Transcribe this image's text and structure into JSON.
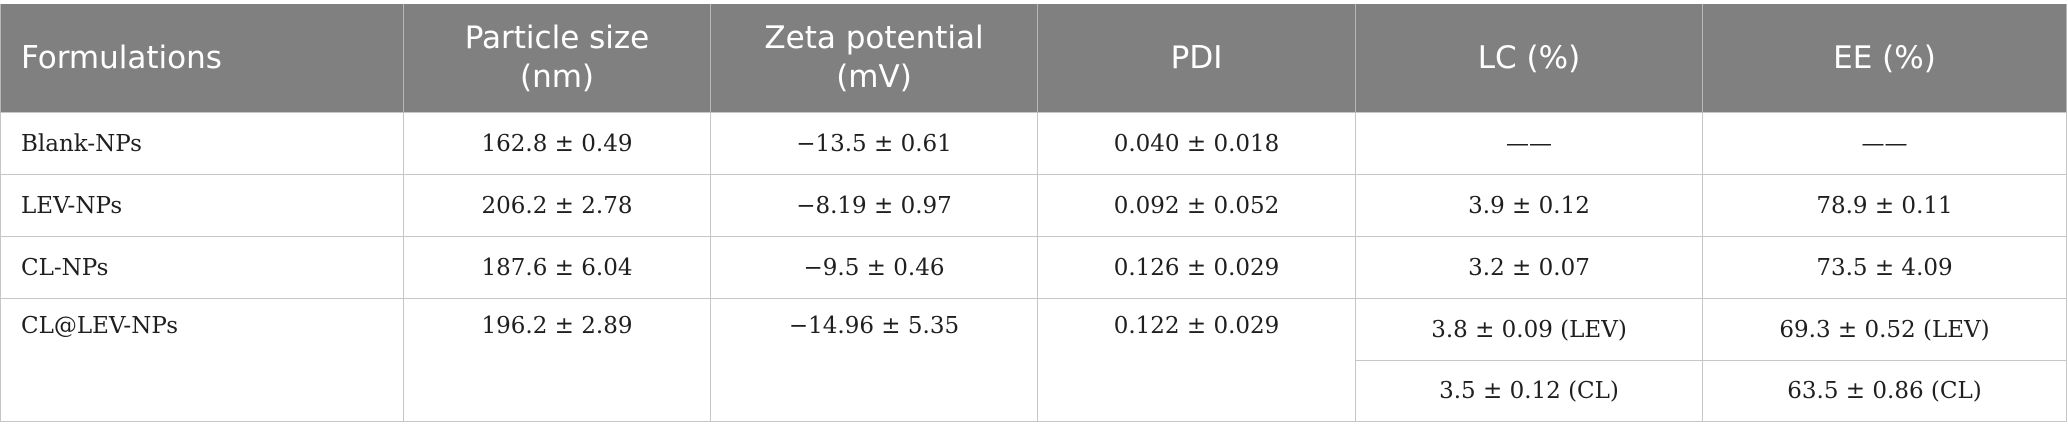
{
  "table": {
    "headers": [
      [
        "Formulations"
      ],
      [
        "Particle size",
        "(nm)"
      ],
      [
        "Zeta potential",
        "(mV)"
      ],
      [
        "PDI"
      ],
      [
        "LC (%)"
      ],
      [
        "EE (%)"
      ]
    ],
    "rows": [
      {
        "formulation": "Blank-NPs",
        "particle_size": "162.8 ± 0.49",
        "zeta_potential": "−13.5 ± 0.61",
        "pdi": "0.040 ± 0.018",
        "lc": "——",
        "ee": "——"
      },
      {
        "formulation": "LEV-NPs",
        "particle_size": "206.2 ± 2.78",
        "zeta_potential": "−8.19 ± 0.97",
        "pdi": "0.092 ± 0.052",
        "lc": "3.9 ± 0.12",
        "ee": "78.9 ± 0.11"
      },
      {
        "formulation": "CL-NPs",
        "particle_size": "187.6 ± 6.04",
        "zeta_potential": "−9.5 ± 0.46",
        "pdi": "0.126 ± 0.029",
        "lc": "3.2 ± 0.07",
        "ee": "73.5 ± 4.09"
      },
      {
        "formulation": "CL@LEV-NPs",
        "particle_size": "196.2 ± 2.89",
        "zeta_potential": "−14.96 ± 5.35",
        "pdi": "0.122 ± 0.029",
        "lc": "3.8 ± 0.09 (LEV)",
        "ee": "69.3 ± 0.52 (LEV)",
        "lc_sub": "3.5 ± 0.12 (CL)",
        "ee_sub": "63.5 ± 0.86 (CL)"
      }
    ]
  }
}
